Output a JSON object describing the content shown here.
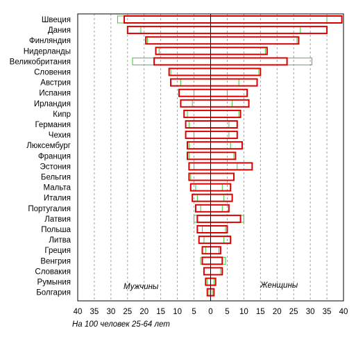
{
  "chart_data": {
    "type": "bar",
    "orientation": "horizontal-diverging",
    "xlabel": "На 100 человек 25-64 лет",
    "side_labels": {
      "left": "Мужчины",
      "right": "Женщины"
    },
    "xlim": [
      -40,
      40
    ],
    "x_ticks": [
      40,
      35,
      30,
      25,
      20,
      15,
      10,
      5,
      0,
      5,
      10,
      15,
      20,
      25,
      30,
      35,
      40
    ],
    "grid": "vertical dashed",
    "categories": [
      "Швеция",
      "Дания",
      "Финляндия",
      "Нидерланды",
      "Великобритания",
      "Словения",
      "Австрия",
      "Испания",
      "Ирландия",
      "Кипр",
      "Германия",
      "Чехия",
      "Люксембург",
      "Франция",
      "Эстония",
      "Бельгия",
      "Мальта",
      "Италия",
      "Португалия",
      "Латвия",
      "Польша",
      "Литва",
      "Греция",
      "Венгрия",
      "Словакия",
      "Румыния",
      "Болгария"
    ],
    "series": [
      {
        "color": "#dd0000",
        "men": [
          26,
          25,
          19.5,
          16.5,
          17,
          12.5,
          12,
          9.5,
          9,
          8,
          7.5,
          7.5,
          7,
          7,
          6.5,
          6.5,
          6,
          5.5,
          4.5,
          4,
          4,
          3.5,
          2.5,
          2.5,
          2,
          1.5,
          1
        ],
        "women": [
          39.5,
          35,
          26.5,
          17,
          23,
          15,
          14,
          11,
          11.5,
          9,
          8,
          8,
          9.5,
          7.5,
          12.5,
          7,
          6,
          6.5,
          5.5,
          9,
          5,
          6,
          3,
          3.5,
          3.5,
          1.5,
          1
        ]
      },
      {
        "color": "#33cc33",
        "men": [
          28,
          21,
          19,
          15.5,
          23.5,
          12,
          9,
          5,
          5.5,
          7,
          6.5,
          5,
          6.5,
          6.5,
          5,
          6,
          4.5,
          4,
          3,
          5,
          2.5,
          2,
          1.5,
          3,
          2,
          1,
          0.5
        ],
        "women": [
          35,
          27,
          26,
          16.5,
          30.5,
          14.5,
          8.5,
          5,
          6.5,
          8.5,
          5.5,
          5.5,
          6,
          7,
          8,
          7,
          3.5,
          4,
          3.5,
          10,
          4.5,
          4,
          2.5,
          4.5,
          3,
          1,
          0.5
        ]
      }
    ]
  }
}
